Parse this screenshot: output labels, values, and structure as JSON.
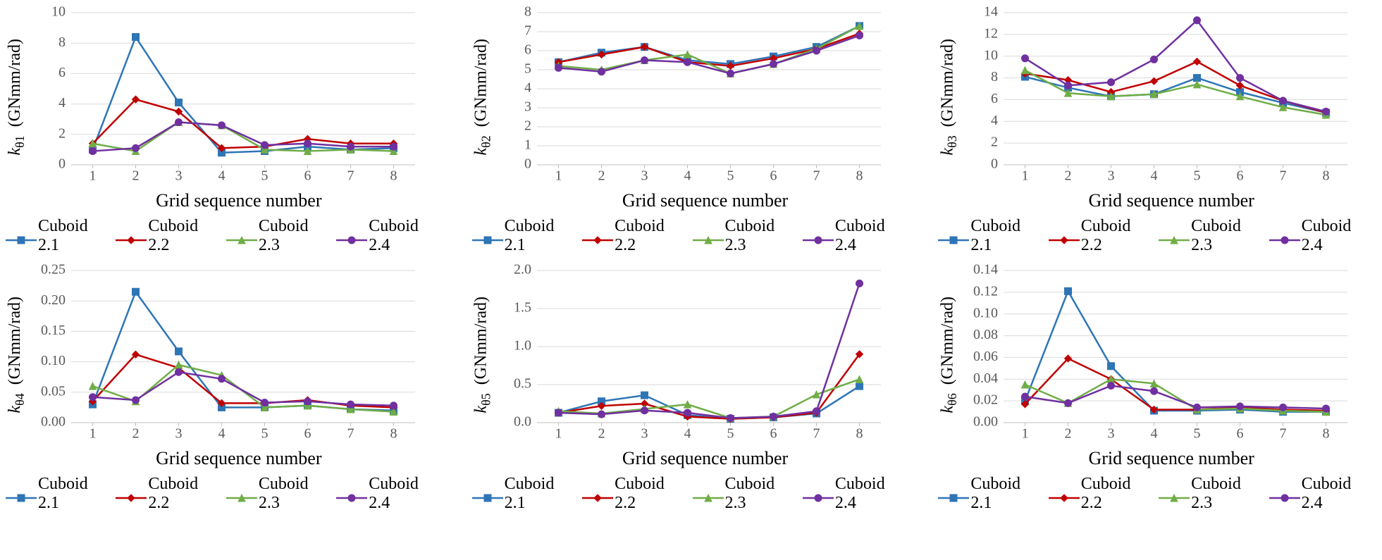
{
  "global": {
    "xlabel": "Grid sequence number",
    "x_categories": [
      1,
      2,
      3,
      4,
      5,
      6,
      7,
      8
    ],
    "background_color": "#ffffff",
    "grid_color": "#d9d9d9",
    "axis_color": "#bfbfbf",
    "tick_font_size": 20,
    "label_font_size": 26,
    "line_width": 2.5,
    "marker_size": 5,
    "series_defs": [
      {
        "name": "Cuboid 2.1",
        "color": "#2e75b6",
        "marker": "square"
      },
      {
        "name": "Cuboid 2.2",
        "color": "#c00000",
        "marker": "diamond"
      },
      {
        "name": "Cuboid 2.3",
        "color": "#70ad47",
        "marker": "triangle"
      },
      {
        "name": "Cuboid 2.4",
        "color": "#7030a0",
        "marker": "circle"
      }
    ]
  },
  "panels": [
    {
      "id": "k01",
      "ylabel_sym": "k",
      "ylabel_sub": "θ1",
      "ylabel_unit": "(GNmm/rad)",
      "ylim": [
        0,
        10
      ],
      "ytick_step": 2,
      "series": [
        [
          1.0,
          8.4,
          4.1,
          0.8,
          0.9,
          1.2,
          1.0,
          1.1
        ],
        [
          1.4,
          4.3,
          3.5,
          1.1,
          1.2,
          1.7,
          1.4,
          1.4
        ],
        [
          1.4,
          0.9,
          2.8,
          2.6,
          1.0,
          0.9,
          1.0,
          0.9
        ],
        [
          0.9,
          1.1,
          2.8,
          2.6,
          1.3,
          1.4,
          1.2,
          1.2
        ]
      ]
    },
    {
      "id": "k02",
      "ylabel_sym": "k",
      "ylabel_sub": "θ2",
      "ylabel_unit": "(GNmm/rad)",
      "ylim": [
        0,
        8
      ],
      "ytick_step": 1,
      "series": [
        [
          5.4,
          5.9,
          6.2,
          5.5,
          5.3,
          5.7,
          6.2,
          7.3
        ],
        [
          5.4,
          5.8,
          6.2,
          5.4,
          5.2,
          5.6,
          6.1,
          6.9
        ],
        [
          5.2,
          5.0,
          5.5,
          5.8,
          4.8,
          5.3,
          6.1,
          7.3
        ],
        [
          5.1,
          4.9,
          5.5,
          5.4,
          4.8,
          5.3,
          6.0,
          6.8
        ]
      ]
    },
    {
      "id": "k03",
      "ylabel_sym": "k",
      "ylabel_sub": "θ3",
      "ylabel_unit": "(GNmm/rad)",
      "ylim": [
        0,
        14
      ],
      "ytick_step": 2,
      "series": [
        [
          8.1,
          7.1,
          6.3,
          6.5,
          8.0,
          6.7,
          5.7,
          4.8
        ],
        [
          8.4,
          7.8,
          6.7,
          7.7,
          9.5,
          7.3,
          5.9,
          4.8
        ],
        [
          8.7,
          6.6,
          6.3,
          6.5,
          7.4,
          6.3,
          5.3,
          4.6
        ],
        [
          9.8,
          7.3,
          7.6,
          9.7,
          13.3,
          8.0,
          5.9,
          4.9
        ]
      ]
    },
    {
      "id": "k04",
      "ylabel_sym": "k",
      "ylabel_sub": "θ4",
      "ylabel_unit": "(GNmm/rad)",
      "ylim": [
        0,
        0.25
      ],
      "ytick_step": 0.05,
      "series": [
        [
          0.03,
          0.215,
          0.117,
          0.025,
          0.025,
          0.028,
          0.022,
          0.02
        ],
        [
          0.035,
          0.112,
          0.09,
          0.032,
          0.032,
          0.037,
          0.028,
          0.025
        ],
        [
          0.06,
          0.035,
          0.095,
          0.078,
          0.025,
          0.028,
          0.022,
          0.018
        ],
        [
          0.042,
          0.037,
          0.083,
          0.072,
          0.033,
          0.035,
          0.03,
          0.028
        ]
      ]
    },
    {
      "id": "k05",
      "ylabel_sym": "k",
      "ylabel_sub": "θ5",
      "ylabel_unit": "(GNmm/rad)",
      "ylim": [
        0.0,
        2.0
      ],
      "ytick_step": 0.5,
      "y_decimals": 1,
      "series": [
        [
          0.13,
          0.28,
          0.36,
          0.1,
          0.05,
          0.07,
          0.12,
          0.48
        ],
        [
          0.13,
          0.22,
          0.25,
          0.08,
          0.05,
          0.07,
          0.13,
          0.9
        ],
        [
          0.15,
          0.12,
          0.18,
          0.24,
          0.06,
          0.08,
          0.37,
          0.57
        ],
        [
          0.13,
          0.11,
          0.16,
          0.13,
          0.06,
          0.08,
          0.15,
          1.83
        ]
      ]
    },
    {
      "id": "k06",
      "ylabel_sym": "k",
      "ylabel_sub": "θ6",
      "ylabel_unit": "(GNmm/rad)",
      "ylim": [
        0,
        0.14
      ],
      "ytick_step": 0.02,
      "series": [
        [
          0.02,
          0.121,
          0.052,
          0.011,
          0.011,
          0.012,
          0.01,
          0.01
        ],
        [
          0.017,
          0.059,
          0.04,
          0.012,
          0.012,
          0.014,
          0.012,
          0.011
        ],
        [
          0.035,
          0.018,
          0.04,
          0.036,
          0.012,
          0.013,
          0.011,
          0.01
        ],
        [
          0.024,
          0.018,
          0.034,
          0.029,
          0.014,
          0.015,
          0.014,
          0.013
        ]
      ]
    }
  ]
}
